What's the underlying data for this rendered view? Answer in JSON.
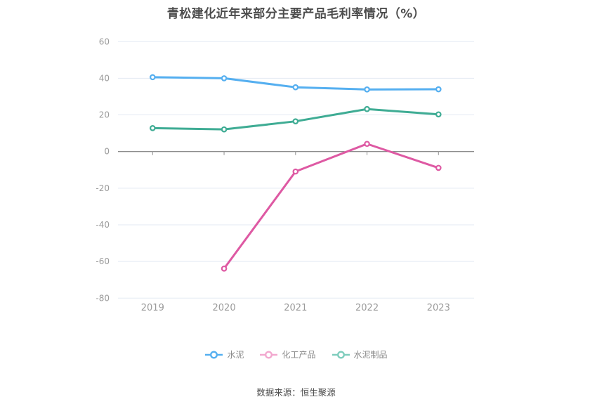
{
  "title": "青松建化近年来部分主要产品毛利率情况（%）",
  "source_note": "数据来源：恒生聚源",
  "chart_data": {
    "type": "line",
    "title": "青松建化近年来部分主要产品毛利率情况（%）",
    "categories": [
      "2019",
      "2020",
      "2021",
      "2022",
      "2023"
    ],
    "series": [
      {
        "name": "水泥",
        "color": "#55AFF0",
        "legend_color": "#55AFF0",
        "values": [
          40.6,
          40.0,
          35.1,
          33.9,
          34.0
        ]
      },
      {
        "name": "化工产品",
        "color": "#DE59A3",
        "legend_color": "#F2A8CF",
        "values": [
          null,
          -63.9,
          -10.9,
          4.2,
          -8.9
        ]
      },
      {
        "name": "水泥制品",
        "color": "#3FAC94",
        "legend_color": "#7FCDBD",
        "values": [
          12.8,
          12.1,
          16.5,
          23.2,
          20.3
        ]
      }
    ],
    "yticks": [
      60,
      40,
      20,
      0,
      -20,
      -40,
      -60,
      -80
    ],
    "ylim": [
      -80,
      60
    ],
    "xlabel": "",
    "ylabel": "",
    "grid": true,
    "legend_position": "bottom",
    "colors": {
      "grid_line": "#E3EAF3",
      "zero_axis": "#666666",
      "axis_tick": "#8F8F8F",
      "tick_label": "#9B9B9B",
      "title_text": "#4C4C4C",
      "legend_text": "#8A8A8A",
      "source_text": "#4F4F4F",
      "background": "#FFFFFF"
    }
  }
}
